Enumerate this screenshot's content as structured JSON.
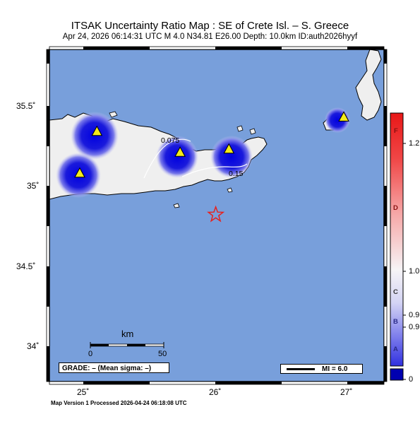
{
  "header": {
    "title": "ITSAK Uncertainty Ratio Map : SE of Crete Isl. – S. Greece",
    "subtitle": "Apr 24, 2026 06:14:31 UTC    M 4.0    N34.81 E26.00    Depth: 10.0km    ID:auth2026hyyf"
  },
  "map": {
    "lat_ticks": [
      "35.5˚",
      "35˚",
      "34.5˚",
      "34˚"
    ],
    "lon_ticks": [
      "25˚",
      "26˚",
      "27˚"
    ],
    "ocean_color": "#789fdb",
    "land_color": "#efefef",
    "contour_labels": [
      "0.075",
      "0.15"
    ],
    "epicenter": {
      "lat": 34.81,
      "lon": 26.0,
      "marker": "star-icon",
      "color": "#e8201c"
    },
    "stations": [
      {
        "name": "station-1",
        "lat": 35.33,
        "lon": 25.1
      },
      {
        "name": "station-2",
        "lat": 35.07,
        "lon": 24.97
      },
      {
        "name": "station-3",
        "lat": 35.2,
        "lon": 25.73
      },
      {
        "name": "station-4",
        "lat": 35.22,
        "lon": 26.1
      },
      {
        "name": "station-5",
        "lat": 35.42,
        "lon": 26.97
      }
    ]
  },
  "scale_bar": {
    "title": "km",
    "labels": [
      "0",
      "50"
    ]
  },
  "legend": {
    "grade": "GRADE: – (Mean sigma: –)",
    "mi": "MI = 6.0"
  },
  "colorbar": {
    "values": [
      "1.2",
      "1.0",
      "0.9",
      "0.9",
      "0"
    ],
    "grades": [
      "F",
      "D",
      "C",
      "B",
      "A"
    ],
    "colors": {
      "high": "#e81818",
      "mid": "#f3f3f6",
      "low": "#2020d8"
    }
  },
  "footer": "Map Version 1 Processed 2026-04-24 06:18:08 UTC"
}
